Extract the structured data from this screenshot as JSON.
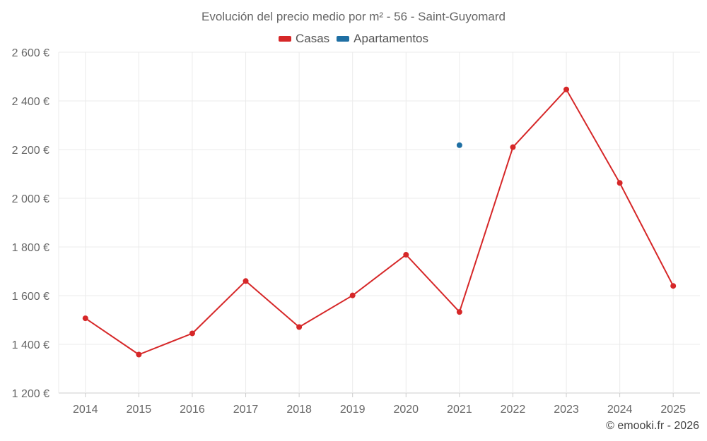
{
  "chart_data": {
    "type": "line",
    "title": "Evolución del precio medio por m² - 56 - Saint-Guyomard",
    "categories": [
      "2014",
      "2015",
      "2016",
      "2017",
      "2018",
      "2019",
      "2020",
      "2021",
      "2022",
      "2023",
      "2024",
      "2025"
    ],
    "series": [
      {
        "name": "Casas",
        "color": "#d62728",
        "values": [
          1507,
          1358,
          1445,
          1660,
          1471,
          1601,
          1768,
          1533,
          2210,
          2447,
          2063,
          1640
        ]
      },
      {
        "name": "Apartamentos",
        "color": "#1f6fa3",
        "values": [
          null,
          null,
          null,
          null,
          null,
          null,
          null,
          2218,
          null,
          null,
          null,
          null
        ]
      }
    ],
    "ylim": [
      1200,
      2600
    ],
    "yticks": [
      1200,
      1400,
      1600,
      1800,
      2000,
      2200,
      2400,
      2600
    ],
    "ytick_labels": [
      "1 200 €",
      "1 400 €",
      "1 600 €",
      "1 800 €",
      "2 000 €",
      "2 200 €",
      "2 400 €",
      "2 600 €"
    ],
    "xlabel": "",
    "ylabel": "",
    "grid": true,
    "legend_position": "top-center"
  },
  "credit": "© emooki.fr - 2026"
}
